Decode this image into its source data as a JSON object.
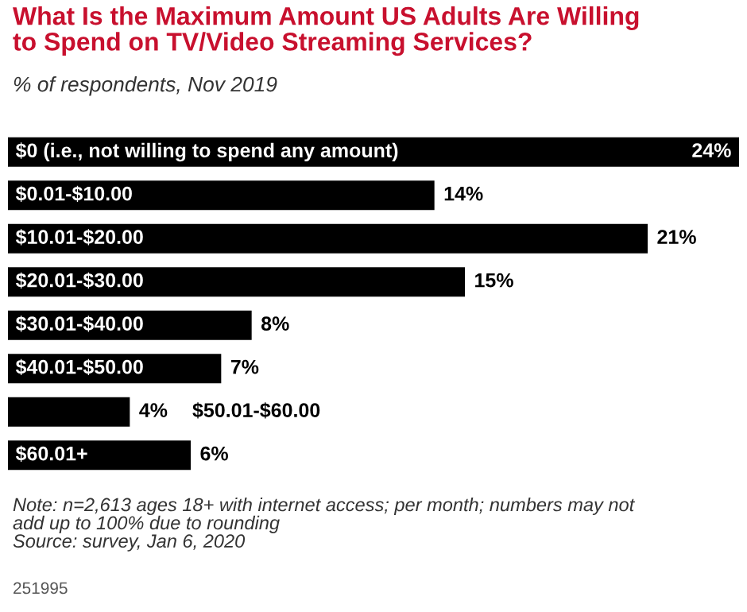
{
  "chart_data": {
    "type": "bar",
    "orientation": "horizontal",
    "title": "What Is the Maximum Amount US Adults Are Willing\nto Spend on TV/Video Streaming Services?",
    "subtitle": "% of respondents, Nov 2019",
    "categories": [
      "$0 (i.e., not willing to spend any amount)",
      "$0.01-$10.00",
      "$10.01-$20.00",
      "$20.01-$30.00",
      "$30.01-$40.00",
      "$40.01-$50.00",
      "$50.01-$60.00",
      "$60.01+"
    ],
    "values": [
      24,
      14,
      21,
      15,
      8,
      7,
      4,
      6
    ],
    "value_labels": [
      "24%",
      "14%",
      "21%",
      "15%",
      "8%",
      "7%",
      "4%",
      "6%"
    ],
    "color": "#000000",
    "annotations": [
      "Note: n=2,613 ages 18+ with internet access; per month; numbers may not\nadd up to 100% due to rounding\nSource: survey, Jan 6, 2020",
      "251995"
    ]
  }
}
